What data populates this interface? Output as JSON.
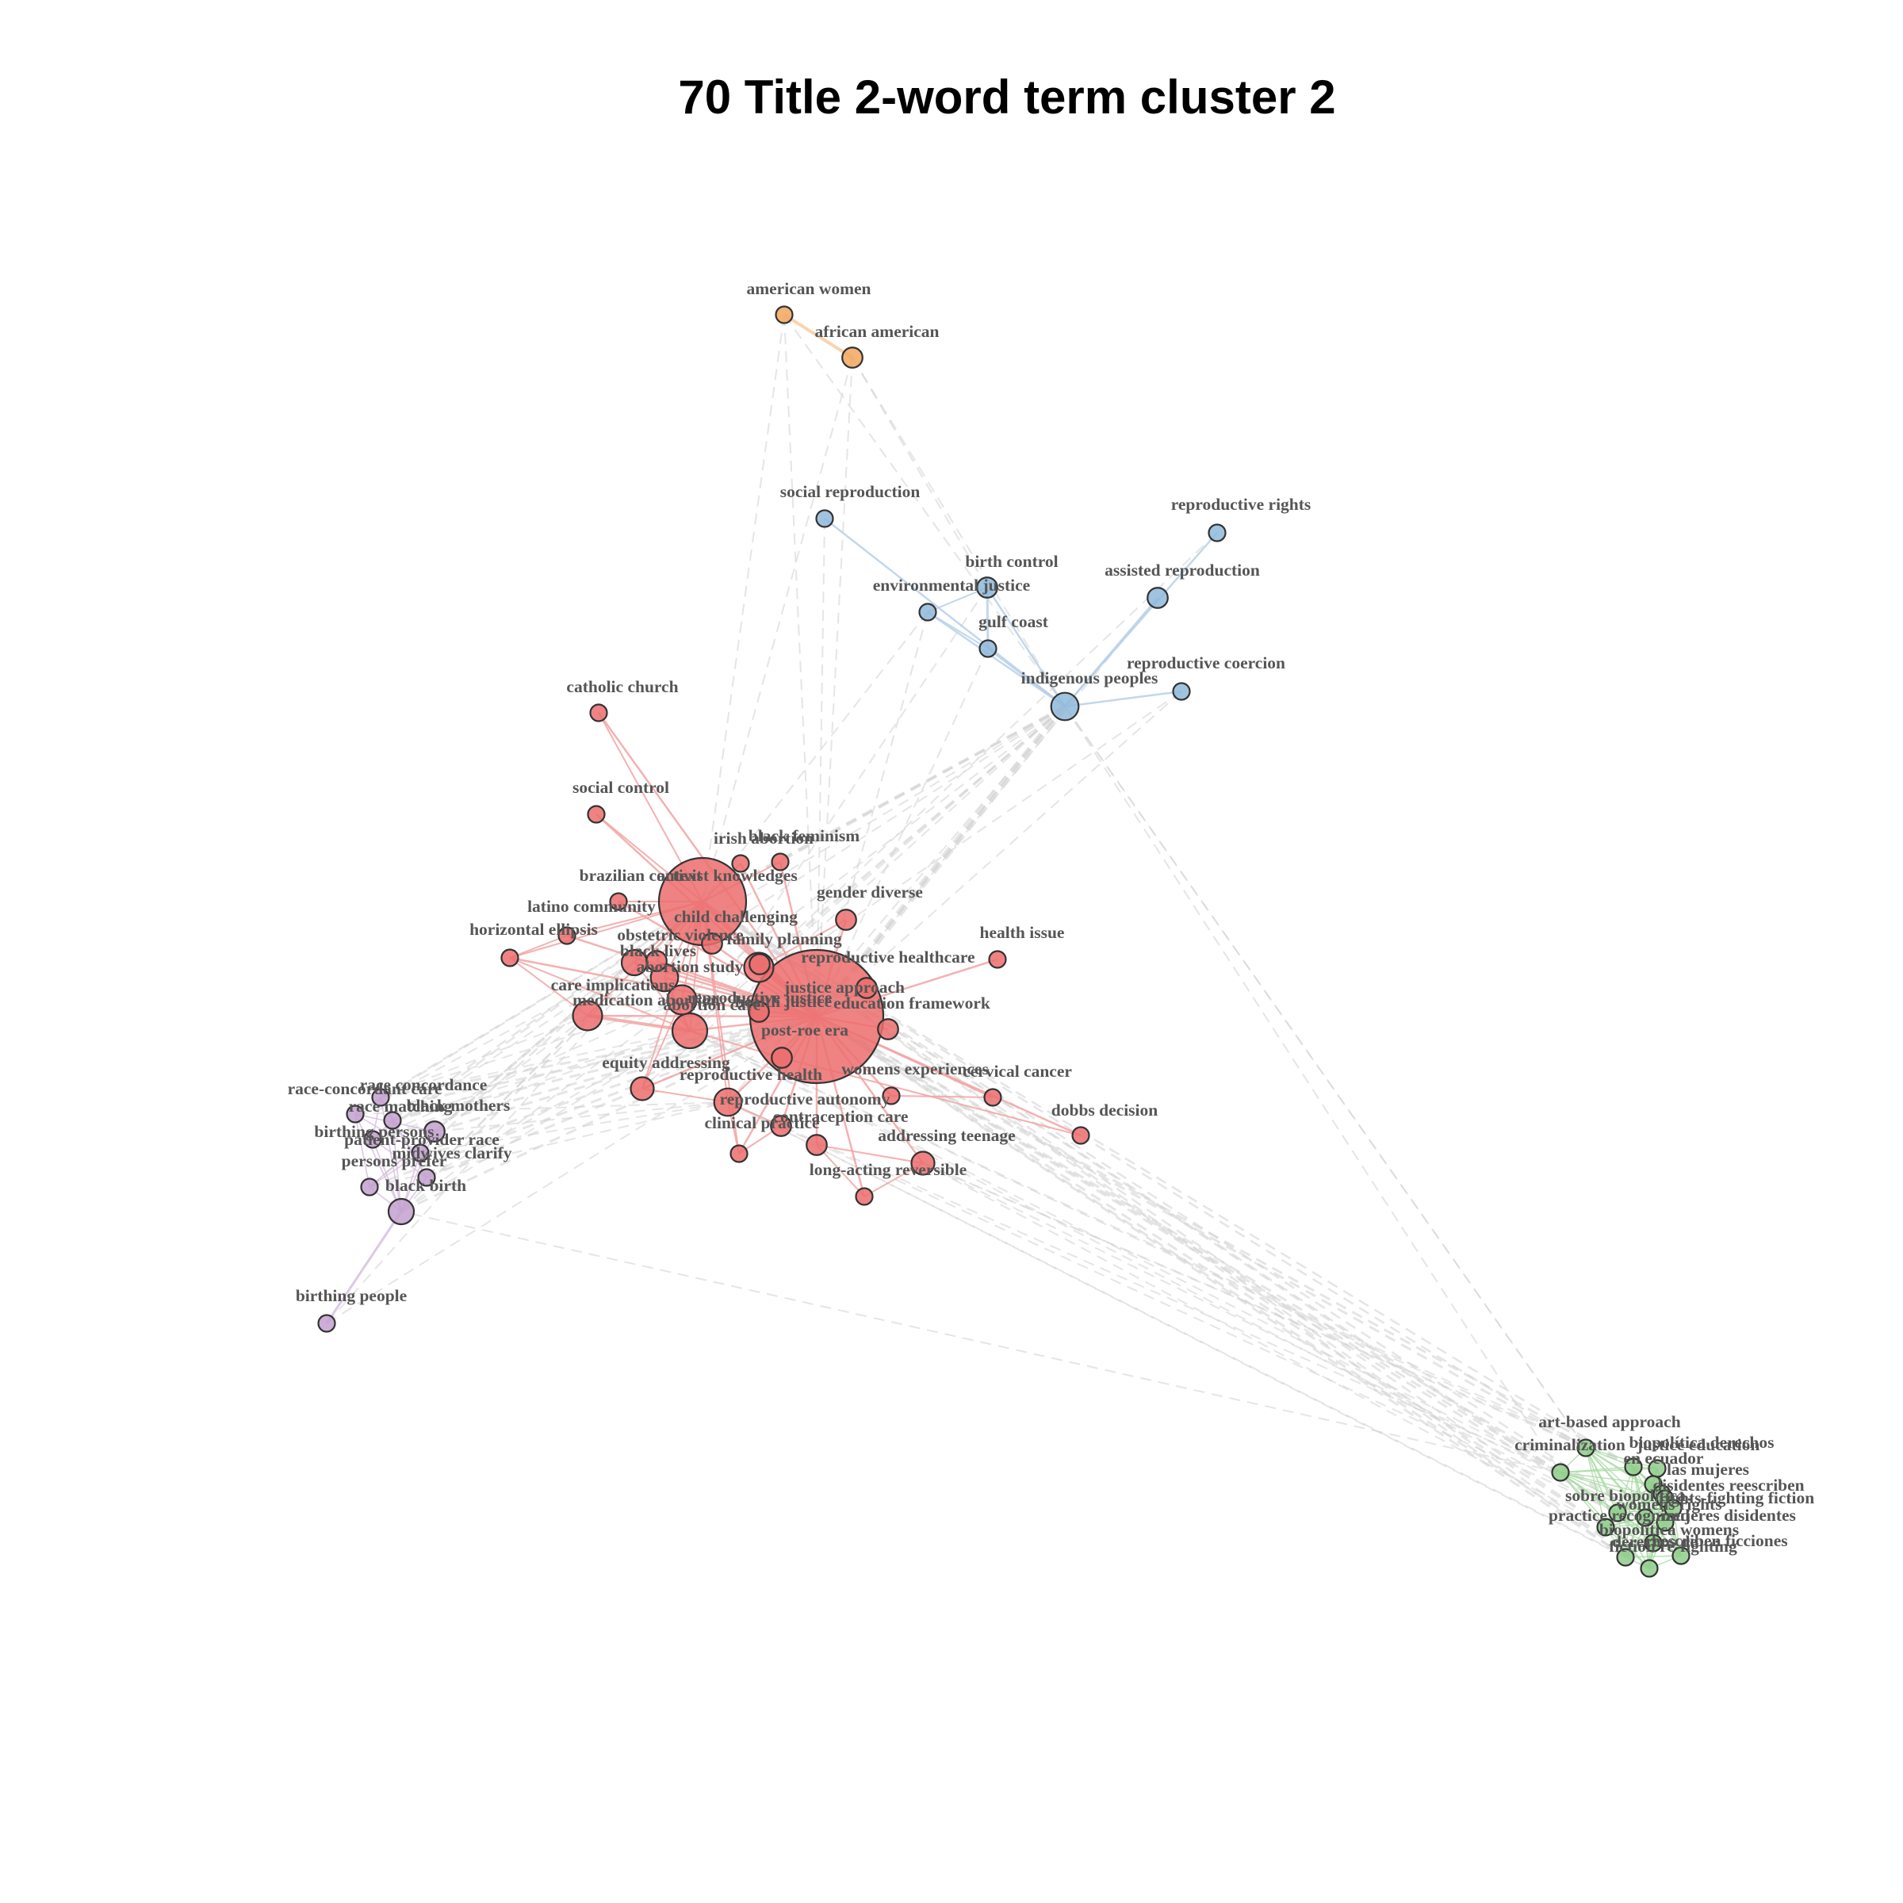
{
  "title": "70 Title 2-word term cluster 2",
  "colors": {
    "red": {
      "fill": "#EC6D6D",
      "line": "#F2A3A3"
    },
    "blue": {
      "fill": "#8FB8DB",
      "line": "#B7D0E8"
    },
    "orange": {
      "fill": "#F2A75E",
      "line": "#F7CDA3"
    },
    "purple": {
      "fill": "#C3A0CF",
      "line": "#D7C0DF"
    },
    "green": {
      "fill": "#8FCC8B",
      "line": "#A9DBA5"
    },
    "between": "#D3D3D3"
  },
  "clusters": [
    {
      "color": "orange",
      "terms": [
        {
          "label": "american women",
          "size": 1
        },
        {
          "label": "african american",
          "size": 2
        }
      ]
    },
    {
      "color": "blue",
      "terms": [
        {
          "label": "social reproduction",
          "size": 1
        },
        {
          "label": "reproductive rights",
          "size": 1
        },
        {
          "label": "birth control",
          "size": 2
        },
        {
          "label": "assisted reproduction",
          "size": 2
        },
        {
          "label": "environmental justice",
          "size": 1
        },
        {
          "label": "gulf coast",
          "size": 1
        },
        {
          "label": "reproductive coercion",
          "size": 1
        },
        {
          "label": "indigenous peoples",
          "size": 5
        }
      ]
    },
    {
      "color": "red",
      "terms": [
        {
          "label": "catholic church",
          "size": 1
        },
        {
          "label": "social control",
          "size": 1
        },
        {
          "label": "irish abortion",
          "size": 1
        },
        {
          "label": "black feminism",
          "size": 1
        },
        {
          "label": "brazilian context",
          "size": 1
        },
        {
          "label": "activist knowledges",
          "size": 60
        },
        {
          "label": "gender diverse",
          "size": 2
        },
        {
          "label": "latino community",
          "size": 1
        },
        {
          "label": "child challenging",
          "size": 2
        },
        {
          "label": "horizontal ellipsis",
          "size": 1
        },
        {
          "label": "obstetric violence",
          "size": 2
        },
        {
          "label": "family planning",
          "size": 2
        },
        {
          "label": "black lives",
          "size": 4
        },
        {
          "label": "health issue",
          "size": 1
        },
        {
          "label": "reproductive healthcare",
          "size": 6
        },
        {
          "label": "abortion study",
          "size": 5
        },
        {
          "label": "justice approach",
          "size": 2
        },
        {
          "label": "care implications",
          "size": 6
        },
        {
          "label": "reproductive justice",
          "size": 100
        },
        {
          "label": "medication abortion",
          "size": 6
        },
        {
          "label": "health justice",
          "size": 2
        },
        {
          "label": "abortion care",
          "size": 10
        },
        {
          "label": "education framework",
          "size": 2
        },
        {
          "label": "post-roe era",
          "size": 2
        },
        {
          "label": "equity addressing",
          "size": 3
        },
        {
          "label": "womens experiences",
          "size": 1
        },
        {
          "label": "cervical cancer",
          "size": 1
        },
        {
          "label": "reproductive health",
          "size": 5
        },
        {
          "label": "reproductive autonomy",
          "size": 2
        },
        {
          "label": "dobbs decision",
          "size": 1
        },
        {
          "label": "contraception care",
          "size": 2
        },
        {
          "label": "clinical practice",
          "size": 1
        },
        {
          "label": "addressing teenage",
          "size": 3
        },
        {
          "label": "long-acting reversible",
          "size": 1
        }
      ]
    },
    {
      "color": "purple",
      "terms": [
        {
          "label": "race concordance",
          "size": 1
        },
        {
          "label": "race-concordant care",
          "size": 1
        },
        {
          "label": "race matching",
          "size": 1
        },
        {
          "label": "black mothers",
          "size": 2
        },
        {
          "label": "birthing persons",
          "size": 1
        },
        {
          "label": "patient-provider race",
          "size": 1
        },
        {
          "label": "midwives clarify",
          "size": 1
        },
        {
          "label": "persons prefer",
          "size": 1
        },
        {
          "label": "black birth",
          "size": 4
        },
        {
          "label": "birthing people",
          "size": 1
        }
      ]
    },
    {
      "color": "green",
      "terms": [
        {
          "label": "art-based approach",
          "size": 1
        },
        {
          "label": "criminalization",
          "size": 1
        },
        {
          "label": "justice education",
          "size": 1
        },
        {
          "label": "biopolítica derechos",
          "size": 1
        },
        {
          "label": "en ecuador",
          "size": 1
        },
        {
          "label": "las mujeres",
          "size": 1
        },
        {
          "label": "disidentes reescriben",
          "size": 1
        },
        {
          "label": "sobre biopolítica",
          "size": 1
        },
        {
          "label": "rights-fighting fiction",
          "size": 1
        },
        {
          "label": "womens rights",
          "size": 1
        },
        {
          "label": "practice recognized",
          "size": 1
        },
        {
          "label": "mujeres disidentes",
          "size": 1
        },
        {
          "label": "biopolítica womens",
          "size": 1
        },
        {
          "label": "derechos de",
          "size": 1
        },
        {
          "label": "reescriben ficciones",
          "size": 1
        },
        {
          "label": "fiction re-fighting",
          "size": 1
        }
      ]
    }
  ]
}
